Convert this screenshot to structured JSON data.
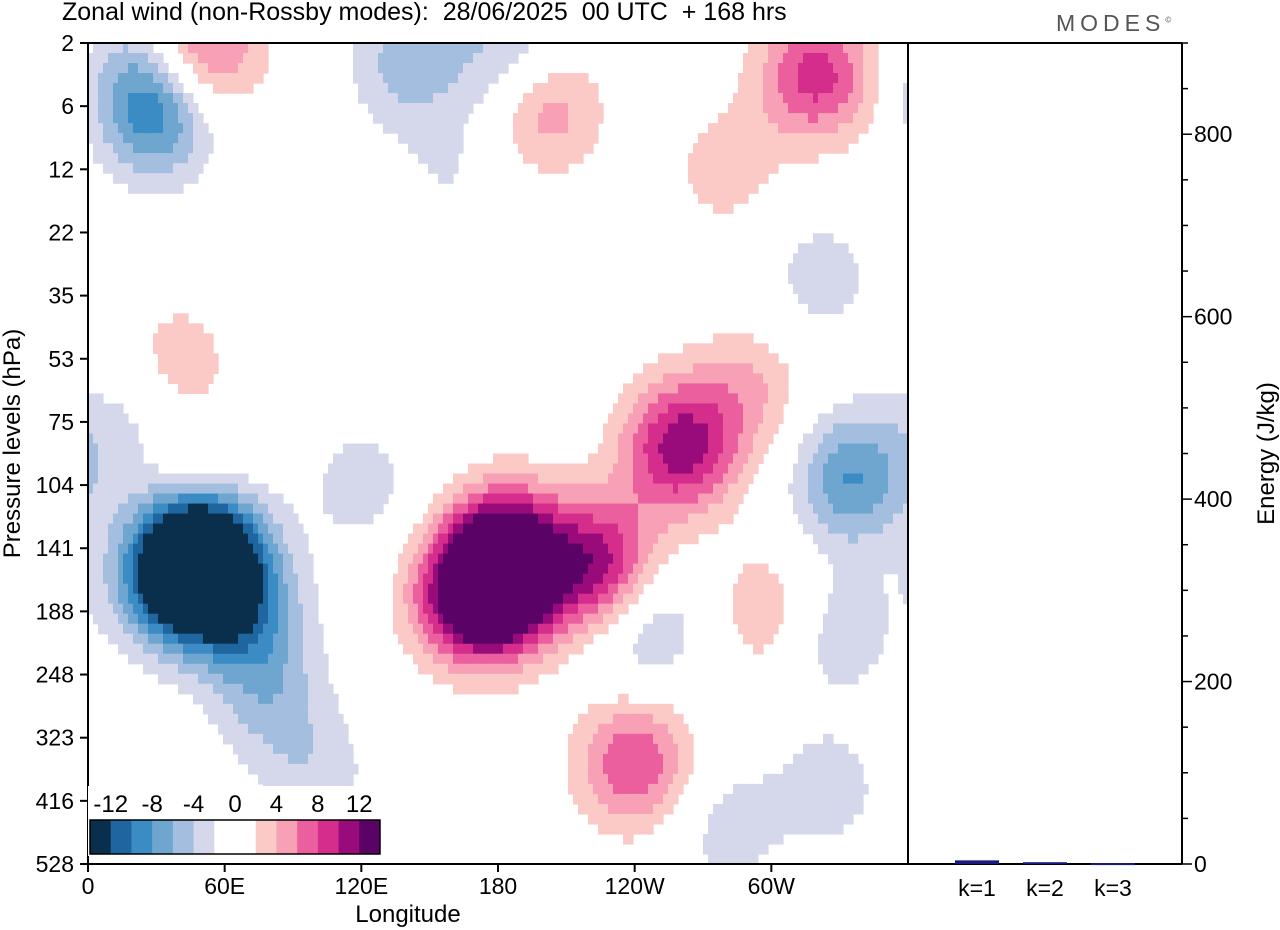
{
  "header": {
    "title": "Zonal wind (non-Rossby modes):  28/06/2025  00 UTC  + 168 hrs",
    "brand": "MODES",
    "brand_mark": "©"
  },
  "chart_data": [
    {
      "type": "heatmap",
      "xlabel": "Longitude",
      "ylabel": "Pressure levels (hPa)",
      "x_ticks": [
        "0",
        "60E",
        "120E",
        "180",
        "120W",
        "60W"
      ],
      "x_tick_values": [
        0,
        60,
        120,
        180,
        240,
        300
      ],
      "xlim": [
        0,
        360
      ],
      "y_ticks": [
        "2",
        "6",
        "12",
        "22",
        "35",
        "53",
        "75",
        "104",
        "141",
        "188",
        "248",
        "323",
        "416",
        "528"
      ],
      "y_order": "top-to-bottom",
      "colorbar": {
        "tick_labels": [
          "-12",
          "-8",
          "-4",
          "0",
          "4",
          "8",
          "12"
        ],
        "levels": [
          -14,
          -12,
          -10,
          -8,
          -6,
          -4,
          -2,
          0,
          2,
          4,
          6,
          8,
          10,
          12,
          14
        ],
        "colors": [
          "#0a2f4d",
          "#1f66a0",
          "#3b8cc4",
          "#6ea6cf",
          "#a3bedf",
          "#d4d8ea",
          "#ffffff",
          "#ffffff",
          "#fbc9c6",
          "#f7a0b6",
          "#ec5f9f",
          "#d42d8b",
          "#990a7a",
          "#5b0266"
        ]
      },
      "blobs": [
        {
          "lon": 46,
          "lev": 8.0,
          "value": -14
        },
        {
          "lon": 56,
          "lev": 8.3,
          "value": -10
        },
        {
          "lon": 36,
          "lev": 8.6,
          "value": -8
        },
        {
          "lon": 70,
          "lev": 9.2,
          "value": -6
        },
        {
          "lon": 80,
          "lev": 10.4,
          "value": -4
        },
        {
          "lon": 100,
          "lev": 11.6,
          "value": -3
        },
        {
          "lon": 120,
          "lev": 7.0,
          "value": -3
        },
        {
          "lon": 15,
          "lev": 6.2,
          "value": -3
        },
        {
          "lon": 30,
          "lev": 1.1,
          "value": -9
        },
        {
          "lon": 20,
          "lev": 0.3,
          "value": -3
        },
        {
          "lon": 140,
          "lev": 0.3,
          "value": -5
        },
        {
          "lon": 185,
          "lev": 0.2,
          "value": -5
        },
        {
          "lon": 160,
          "lev": 2.0,
          "value": -2
        },
        {
          "lon": 244,
          "lev": 9.2,
          "value": -5
        },
        {
          "lon": 335,
          "lev": 6.9,
          "value": -8
        },
        {
          "lon": 322,
          "lev": 3.7,
          "value": -3
        },
        {
          "lon": 328,
          "lev": 9.3,
          "value": -4
        },
        {
          "lon": 325,
          "lev": 11.8,
          "value": -3
        },
        {
          "lon": 280,
          "lev": 12.4,
          "value": -3
        },
        {
          "lon": 180,
          "lev": 8.6,
          "value": 14
        },
        {
          "lon": 185,
          "lev": 8.0,
          "value": 10
        },
        {
          "lon": 165,
          "lev": 8.8,
          "value": 8
        },
        {
          "lon": 225,
          "lev": 8.3,
          "value": 11
        },
        {
          "lon": 260,
          "lev": 6.4,
          "value": 11
        },
        {
          "lon": 290,
          "lev": 5.5,
          "value": 4
        },
        {
          "lon": 240,
          "lev": 11.4,
          "value": 8
        },
        {
          "lon": 200,
          "lev": 1.0,
          "value": 6
        },
        {
          "lon": 50,
          "lev": 0.1,
          "value": 8
        },
        {
          "lon": 320,
          "lev": 0.5,
          "value": 9
        },
        {
          "lon": 280,
          "lev": 2.0,
          "value": 3
        },
        {
          "lon": 300,
          "lev": 9.0,
          "value": 4
        },
        {
          "lon": 45,
          "lev": 7.1,
          "value": 4
        },
        {
          "lon": 40,
          "lev": 5.0,
          "value": 3
        }
      ]
    },
    {
      "type": "bar",
      "categories": [
        "k=1",
        "k=2",
        "k=3"
      ],
      "values": [
        4,
        2,
        1
      ],
      "ylabel": "Energy (J/kg)",
      "ylim": [
        0,
        900
      ],
      "y_ticks": [
        0,
        200,
        400,
        600,
        800
      ],
      "bar_color": "#1a1a80"
    }
  ]
}
